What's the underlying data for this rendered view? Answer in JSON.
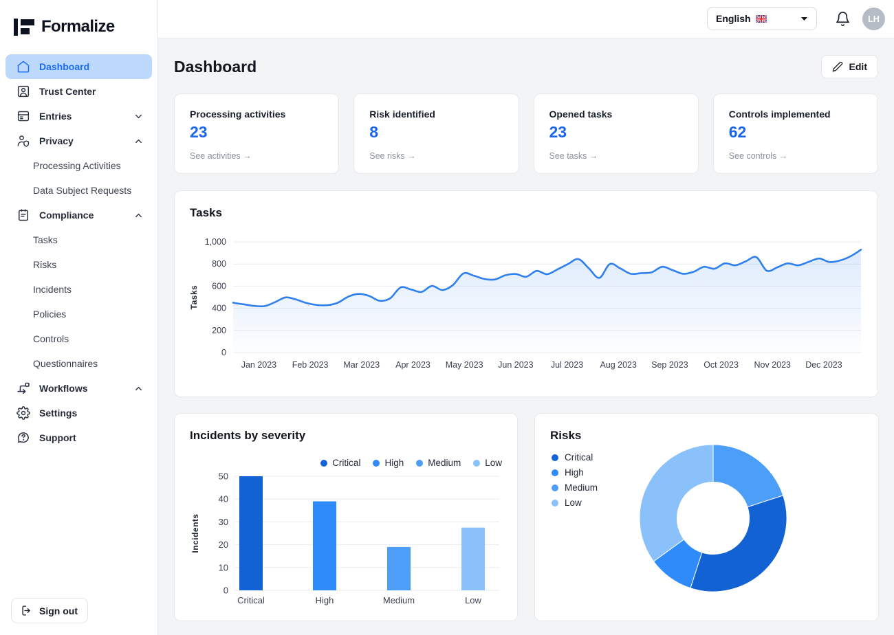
{
  "brand": {
    "name": "Formalize"
  },
  "topbar": {
    "language": "English",
    "avatar_initials": "LH"
  },
  "sidebar": {
    "items": [
      {
        "label": "Dashboard"
      },
      {
        "label": "Trust Center"
      },
      {
        "label": "Entries"
      },
      {
        "label": "Privacy"
      },
      {
        "label": "Processing Activities"
      },
      {
        "label": "Data Subject Requests"
      },
      {
        "label": "Compliance"
      },
      {
        "label": "Tasks"
      },
      {
        "label": "Risks"
      },
      {
        "label": "Incidents"
      },
      {
        "label": "Policies"
      },
      {
        "label": "Controls"
      },
      {
        "label": "Questionnaires"
      },
      {
        "label": "Workflows"
      },
      {
        "label": "Settings"
      },
      {
        "label": "Support"
      }
    ],
    "sign_out_label": "Sign out"
  },
  "header": {
    "title": "Dashboard",
    "edit_label": "Edit"
  },
  "stat_cards": [
    {
      "title": "Processing activities",
      "value": "23",
      "link": "See activities",
      "arrow": "→"
    },
    {
      "title": "Risk identified",
      "value": "8",
      "link": "See risks",
      "arrow": "→"
    },
    {
      "title": "Opened tasks",
      "value": "23",
      "link": "See tasks",
      "arrow": "→"
    },
    {
      "title": "Controls implemented",
      "value": "62",
      "link": "See controls",
      "arrow": "→"
    }
  ],
  "chart_data": [
    {
      "id": "tasks",
      "type": "area",
      "title": "Tasks",
      "ylabel": "Tasks",
      "ylim": [
        0,
        1000
      ],
      "yticks": [
        {
          "v": 0,
          "label": "0"
        },
        {
          "v": 200,
          "label": "200"
        },
        {
          "v": 400,
          "label": "400"
        },
        {
          "v": 600,
          "label": "600"
        },
        {
          "v": 800,
          "label": "800"
        },
        {
          "v": 1000,
          "label": "1,000"
        }
      ],
      "x_labels": [
        "Jan 2023",
        "Feb 2023",
        "Mar 2023",
        "Apr 2023",
        "May 2023",
        "Jun 2023",
        "Jul 2023",
        "Aug 2023",
        "Sep 2023",
        "Oct 2023",
        "Nov 2023",
        "Dec 2023"
      ],
      "values": [
        450,
        436,
        422,
        420,
        455,
        498,
        480,
        448,
        430,
        428,
        450,
        505,
        530,
        512,
        468,
        490,
        588,
        570,
        548,
        602,
        565,
        610,
        715,
        695,
        665,
        660,
        698,
        710,
        685,
        738,
        708,
        752,
        800,
        845,
        760,
        675,
        800,
        760,
        712,
        718,
        725,
        775,
        745,
        712,
        730,
        775,
        758,
        806,
        788,
        825,
        862,
        740,
        770,
        806,
        788,
        820,
        850,
        818,
        832,
        870,
        930
      ],
      "line_color": "#2f80ed"
    },
    {
      "id": "incidents",
      "type": "bar",
      "title": "Incidents by severity",
      "ylabel": "Incidents",
      "ylim": [
        0,
        50
      ],
      "yticks": [
        0,
        10,
        20,
        30,
        40,
        50
      ],
      "categories": [
        "Critical",
        "High",
        "Medium",
        "Low"
      ],
      "values": [
        50,
        39,
        19,
        27.5
      ],
      "colors": [
        "#1362d4",
        "#2e8bf9",
        "#4d9ef9",
        "#8bc1fb"
      ],
      "legend": [
        "Critical",
        "High",
        "Medium",
        "Low"
      ]
    },
    {
      "id": "risks",
      "type": "donut",
      "title": "Risks",
      "legend": [
        "Critical",
        "High",
        "Medium",
        "Low"
      ],
      "slices": [
        {
          "label": "Medium",
          "value": 20
        },
        {
          "label": "Critical",
          "value": 35
        },
        {
          "label": "High",
          "value": 10
        },
        {
          "label": "Low",
          "value": 35
        }
      ],
      "colors": {
        "Critical": "#1362d4",
        "High": "#2e8bf9",
        "Medium": "#4d9ef9",
        "Low": "#8bc1fb"
      }
    }
  ]
}
